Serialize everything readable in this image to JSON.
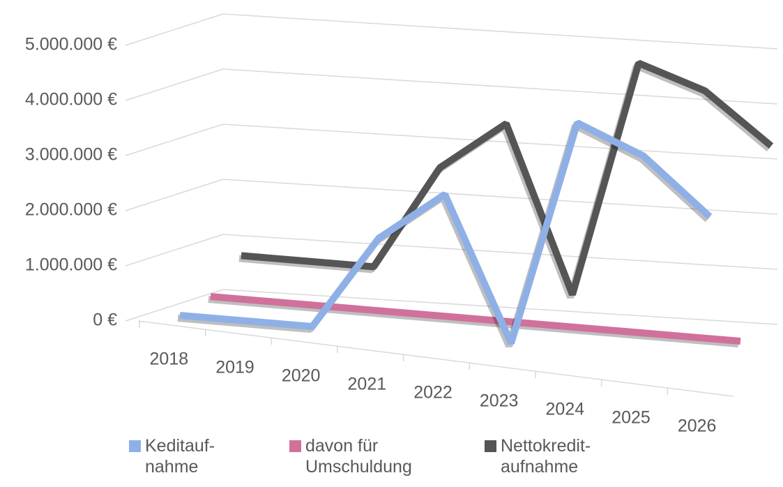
{
  "chart_data": {
    "type": "line3d",
    "categories": [
      "2018",
      "2019",
      "2020",
      "2021",
      "2022",
      "2023",
      "2024",
      "2025",
      "2026"
    ],
    "series": [
      {
        "name": "Keditauf-nahme",
        "color": "#8fb0e6",
        "values": [
          0,
          0,
          0,
          1700000,
          2600000,
          0,
          4100000,
          3600000,
          2600000
        ]
      },
      {
        "name": "davon für Umschuldung",
        "color": "#d0719b",
        "values": [
          0,
          0,
          0,
          0,
          0,
          0,
          0,
          0,
          0
        ]
      },
      {
        "name": "Nettokredit-aufnahme",
        "color": "#555555",
        "values": [
          400000,
          400000,
          400000,
          2300000,
          3200000,
          200000,
          4500000,
          4100000,
          3200000
        ]
      }
    ],
    "ylim": [
      0,
      5000000
    ],
    "yticks": [
      {
        "value": 0,
        "label": "0 €"
      },
      {
        "value": 1000000,
        "label": "1.000.000 €"
      },
      {
        "value": 2000000,
        "label": "2.000.000 €"
      },
      {
        "value": 3000000,
        "label": "3.000.000 €"
      },
      {
        "value": 4000000,
        "label": "4.000.000 €"
      },
      {
        "value": 5000000,
        "label": "5.000.000 €"
      }
    ],
    "grid": true,
    "legend": "bottom"
  }
}
